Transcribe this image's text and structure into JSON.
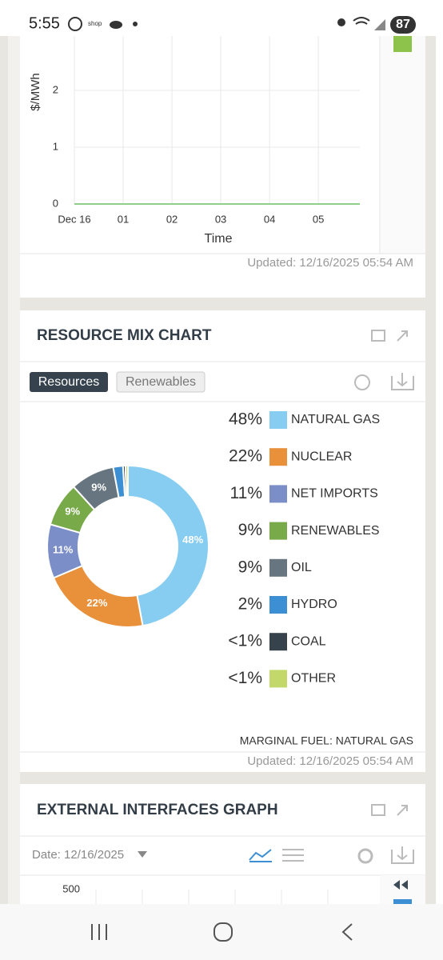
{
  "screen": {
    "status_time": "5:55",
    "status_shop": "shop",
    "battery": "87",
    "updated_top": "Updated: 12/16/2025 05:54 AM",
    "updated_mix": "Updated: 12/16/2025 05:54 AM",
    "tab_resources": "Resources",
    "tab_renewables": "Renewables",
    "marginal_fuel": "MARGINAL FUEL: NATURAL GAS",
    "date": "Date: 12/16/2025"
  },
  "chart_data": [
    {
      "type": "line",
      "y_label": "$/MWh",
      "x_label": "Time",
      "x": [
        0,
        5.85
      ],
      "series": [
        {
          "color": "#8fcf8a",
          "values": [
            0,
            0
          ]
        }
      ],
      "xlim": [
        0,
        5.85
      ],
      "xticks": [
        {
          "value": 0,
          "label": "Dec 16"
        },
        {
          "value": 1,
          "label": "01"
        },
        {
          "value": 2,
          "label": "02"
        },
        {
          "value": 3,
          "label": "03"
        },
        {
          "value": 4,
          "label": "04"
        },
        {
          "value": 5,
          "label": "05"
        }
      ],
      "ylim": [
        0,
        3
      ],
      "yticks": [
        0,
        1,
        2
      ],
      "grid": true
    },
    {
      "type": "pie",
      "title": "RESOURCE MIX CHART",
      "categories": [
        "NATURAL GAS",
        "NUCLEAR",
        "NET IMPORTS",
        "RENEWABLES",
        "OIL",
        "HYDRO",
        "COAL",
        "OTHER"
      ],
      "values": [
        48,
        22,
        11,
        9,
        9,
        2,
        0.5,
        0.5
      ],
      "value_labels": [
        "48%",
        "22%",
        "11%",
        "9%",
        "9%",
        "2%",
        "<1%",
        "<1%"
      ],
      "colors": [
        "#87cdf2",
        "#e8913a",
        "#7b8ec8",
        "#78aa4a",
        "#66757f",
        "#3d8fd3",
        "#37434c",
        "#c3d86a"
      ]
    },
    {
      "type": "line",
      "title": "EXTERNAL INTERFACES GRAPH",
      "ylim": [
        0,
        500
      ],
      "yticks": [
        500
      ]
    }
  ]
}
